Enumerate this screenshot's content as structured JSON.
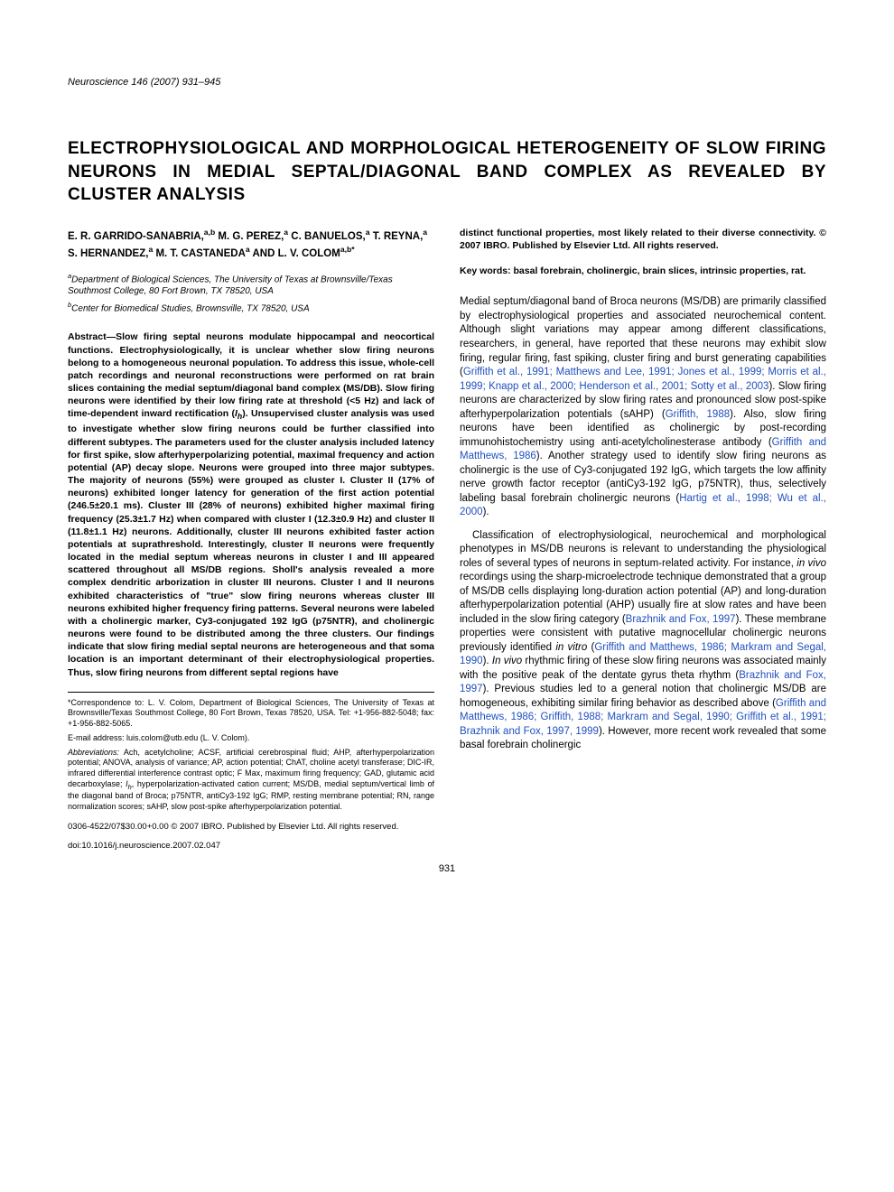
{
  "journal": {
    "citation": "Neuroscience 146 (2007) 931–945"
  },
  "title": "ELECTROPHYSIOLOGICAL AND MORPHOLOGICAL HETEROGENEITY OF SLOW FIRING NEURONS IN MEDIAL SEPTAL/DIAGONAL BAND COMPLEX AS REVEALED BY CLUSTER ANALYSIS",
  "authors_html": "E. R. GARRIDO-SANABRIA,<sup>a,b</sup> M. G. PEREZ,<sup>a</sup> C. BANUELOS,<sup>a</sup> T. REYNA,<sup>a</sup> S. HERNANDEZ,<sup>a</sup> M. T. CASTANEDA<sup>a</sup> AND L. V. COLOM<sup>a,b*</sup>",
  "affiliations": {
    "a": "Department of Biological Sciences, The University of Texas at Brownsville/Texas Southmost College, 80 Fort Brown, TX 78520, USA",
    "b": "Center for Biomedical Studies, Brownsville, TX 78520, USA"
  },
  "abstract_html": "Abstract—Slow firing septal neurons modulate hippocampal and neocortical functions. Electrophysiologically, it is unclear whether slow firing neurons belong to a homogeneous neuronal population. To address this issue, whole-cell patch recordings and neuronal reconstructions were performed on rat brain slices containing the medial septum/diagonal band complex (MS/DB). Slow firing neurons were identified by their low firing rate at threshold (<5 Hz) and lack of time-dependent inward rectification (<i>I<sub>h</sub></i>). Unsupervised cluster analysis was used to investigate whether slow firing neurons could be further classified into different subtypes. The parameters used for the cluster analysis included latency for first spike, slow afterhyperpolarizing potential, maximal frequency and action potential (AP) decay slope. Neurons were grouped into three major subtypes. The majority of neurons (55%) were grouped as cluster I. Cluster II (17% of neurons) exhibited longer latency for generation of the first action potential (246.5±20.1 ms). Cluster III (28% of neurons) exhibited higher maximal firing frequency (25.3±1.7 Hz) when compared with cluster I (12.3±0.9 Hz) and cluster II (11.8±1.1 Hz) neurons. Additionally, cluster III neurons exhibited faster action potentials at suprathreshold. Interestingly, cluster II neurons were frequently located in the medial septum whereas neurons in cluster I and III appeared scattered throughout all MS/DB regions. Sholl's analysis revealed a more complex dendritic arborization in cluster III neurons. Cluster I and II neurons exhibited characteristics of \"true\" slow firing neurons whereas cluster III neurons exhibited higher frequency firing patterns. Several neurons were labeled with a cholinergic marker, Cy3-conjugated 192 IgG (p75NTR), and cholinergic neurons were found to be distributed among the three clusters. Our findings indicate that slow firing medial septal neurons are heterogeneous and that soma location is an important determinant of their electrophysiological properties. Thus, slow firing neurons from different septal regions have",
  "copyright": "distinct functional properties, most likely related to their diverse connectivity. © 2007 IBRO. Published by Elsevier Ltd. All rights reserved.",
  "keywords": "Key words: basal forebrain, cholinergic, brain slices, intrinsic properties, rat.",
  "body": {
    "p1_html": "Medial septum/diagonal band of Broca neurons (MS/DB) are primarily classified by electrophysiological properties and associated neurochemical content. Although slight variations may appear among different classifications, researchers, in general, have reported that these neurons may exhibit slow firing, regular firing, fast spiking, cluster firing and burst generating capabilities (<span class=\"link\">Griffith et al., 1991; Matthews and Lee, 1991; Jones et al., 1999; Morris et al., 1999; Knapp et al., 2000; Henderson et al., 2001; Sotty et al., 2003</span>). Slow firing neurons are characterized by slow firing rates and pronounced slow post-spike afterhyperpolarization potentials (sAHP) (<span class=\"link\">Griffith, 1988</span>). Also, slow firing neurons have been identified as cholinergic by post-recording immunohistochemistry using anti-acetylcholinesterase antibody (<span class=\"link\">Griffith and Matthews, 1986</span>). Another strategy used to identify slow firing neurons as cholinergic is the use of Cy3-conjugated 192 IgG, which targets the low affinity nerve growth factor receptor (antiCy3-192 IgG, p75NTR), thus, selectively labeling basal forebrain cholinergic neurons (<span class=\"link\">Hartig et al., 1998; Wu et al., 2000</span>).",
    "p2_html": "Classification of electrophysiological, neurochemical and morphological phenotypes in MS/DB neurons is relevant to understanding the physiological roles of several types of neurons in septum-related activity. For instance, <i>in vivo</i> recordings using the sharp-microelectrode technique demonstrated that a group of MS/DB cells displaying long-duration action potential (AP) and long-duration afterhyperpolarization potential (AHP) usually fire at slow rates and have been included in the slow firing category (<span class=\"link\">Brazhnik and Fox, 1997</span>). These membrane properties were consistent with putative magnocellular cholinergic neurons previously identified <i>in vitro</i> (<span class=\"link\">Griffith and Matthews, 1986; Markram and Segal, 1990</span>). <i>In vivo</i> rhythmic firing of these slow firing neurons was associated mainly with the positive peak of the dentate gyrus theta rhythm (<span class=\"link\">Brazhnik and Fox, 1997</span>). Previous studies led to a general notion that cholinergic MS/DB are homogeneous, exhibiting similar firing behavior as described above (<span class=\"link\">Griffith and Matthews, 1986; Griffith, 1988; Markram and Segal, 1990; Griffith et al., 1991; Brazhnik and Fox, 1997, 1999</span>). However, more recent work revealed that some basal forebrain cholinergic"
  },
  "footnotes": {
    "correspondence": "*Correspondence to: L. V. Colom, Department of Biological Sciences, The University of Texas at Brownsville/Texas Southmost College, 80 Fort Brown, Texas 78520, USA. Tel: +1-956-882-5048; fax: +1-956-882-5065.",
    "email": "E-mail address: luis.colom@utb.edu (L. V. Colom).",
    "abbreviations_html": "<i>Abbreviations:</i> Ach, acetylcholine; ACSF, artificial cerebrospinal fluid; AHP, afterhyperpolarization potential; ANOVA, analysis of variance; AP, action potential; ChAT, choline acetyl transferase; DIC-IR, infrared differential interference contrast optic; F Max, maximum firing frequency; GAD, glutamic acid decarboxylase; <i>I<sub>h</sub></i>, hyperpolarization-activated cation current; MS/DB, medial septum/vertical limb of the diagonal band of Broca; p75NTR, antiCy3-192 IgG; RMP, resting membrane potential; RN, range normalization scores; sAHP, slow post-spike afterhyperpolarization potential."
  },
  "bottom": {
    "line1": "0306-4522/07$30.00+0.00 © 2007 IBRO. Published by Elsevier Ltd. All rights reserved.",
    "line2": "doi:10.1016/j.neuroscience.2007.02.047"
  },
  "page_number": "931",
  "colors": {
    "text": "#000000",
    "link": "#2050c0",
    "background": "#ffffff"
  },
  "typography": {
    "title_fontsize": 19,
    "body_fontsize": 11.5,
    "abstract_fontsize": 10.5,
    "footnote_fontsize": 9,
    "font_family": "Arial, Helvetica, sans-serif"
  }
}
